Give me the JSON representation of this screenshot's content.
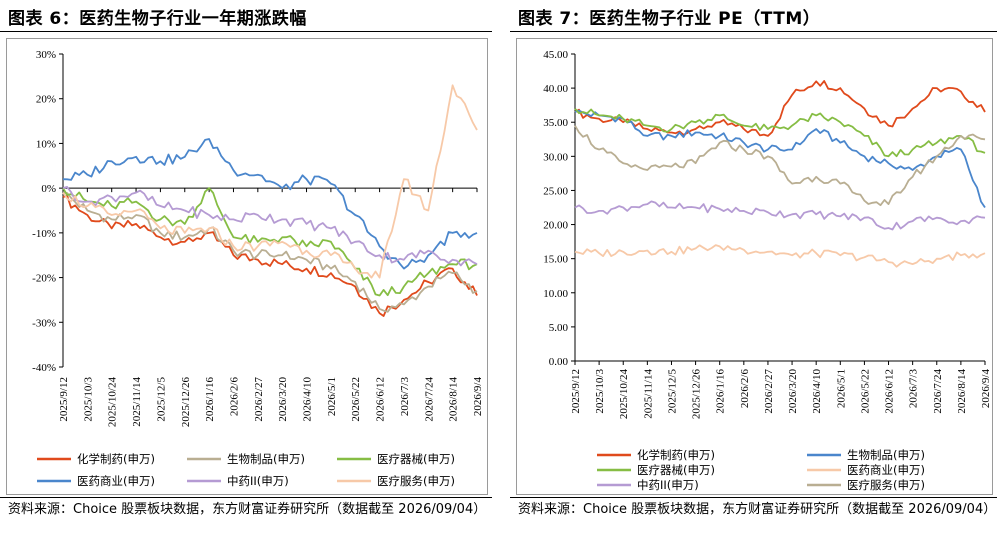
{
  "source_text": "资料来源：Choice 股票板块数据，东方财富证券研究所（数据截至 2026/09/04）",
  "left": {
    "title": "图表 6：医药生物子行业一年期涨跌幅"
  },
  "right": {
    "title": "图表 7：医药生物子行业 PE（TTM）"
  },
  "chart_data": [
    {
      "type": "line",
      "categories": [
        "2025/9/12",
        "2025/10/3",
        "2025/10/24",
        "2025/11/14",
        "2025/12/5",
        "2025/12/26",
        "2026/1/16",
        "2026/2/6",
        "2026/2/27",
        "2026/3/20",
        "2026/4/10",
        "2026/5/1",
        "2026/5/22",
        "2026/6/12",
        "2026/7/3",
        "2026/7/24",
        "2026/8/14",
        "2026/9/4"
      ],
      "ylim": [
        -40,
        30
      ],
      "yticks": [
        -40,
        -30,
        -20,
        -10,
        0,
        10,
        20,
        30
      ],
      "ytick_labels": [
        "-40%",
        "-30%",
        "-20%",
        "-10%",
        "0%",
        "10%",
        "20%",
        "30%"
      ],
      "legend_position": "bottom",
      "series": [
        {
          "name": "化学制药(申万)",
          "color": "#e04a1c",
          "values": [
            -2,
            -6,
            -9,
            -8,
            -11,
            -12,
            -10,
            -15,
            -16,
            -17,
            -18,
            -19,
            -22,
            -28,
            -25,
            -21,
            -18,
            -24
          ]
        },
        {
          "name": "生物制品(申万)",
          "color": "#b9ae92",
          "values": [
            -1,
            -5,
            -7,
            -6,
            -10,
            -11,
            -9,
            -14,
            -15,
            -15,
            -16,
            -18,
            -21,
            -27,
            -26,
            -22,
            -19,
            -23
          ]
        },
        {
          "name": "医疗器械(申万)",
          "color": "#86bd44",
          "values": [
            0,
            -3,
            -4,
            -3,
            -7,
            -8,
            0,
            -11,
            -12,
            -11,
            -13,
            -12,
            -18,
            -24,
            -22,
            -19,
            -17,
            -17
          ]
        },
        {
          "name": "医药商业(申万)",
          "color": "#4a86cc",
          "values": [
            2,
            3,
            6,
            7,
            6,
            7,
            11,
            4,
            3,
            0,
            2,
            1,
            -6,
            -13,
            -18,
            -15,
            -10,
            -10
          ]
        },
        {
          "name": "中药II(申万)",
          "color": "#b59bd3",
          "values": [
            0,
            -3,
            -2,
            -1,
            -4,
            -5,
            -6,
            -7,
            -6,
            -7,
            -8,
            -9,
            -12,
            -15,
            -16,
            -14,
            -16,
            -17
          ]
        },
        {
          "name": "医疗服务(申万)",
          "color": "#f7c9a8",
          "values": [
            -1,
            -4,
            -6,
            -5,
            -9,
            -10,
            -9,
            -13,
            -13,
            -12,
            -14,
            -15,
            -18,
            -20,
            2,
            -5,
            23,
            13
          ]
        }
      ]
    },
    {
      "type": "line",
      "categories": [
        "2025/9/12",
        "2025/10/3",
        "2025/10/24",
        "2025/11/14",
        "2025/12/5",
        "2025/12/26",
        "2026/1/16",
        "2026/2/6",
        "2026/2/27",
        "2026/3/20",
        "2026/4/10",
        "2026/5/1",
        "2026/5/22",
        "2026/6/12",
        "2026/7/3",
        "2026/7/24",
        "2026/8/14",
        "2026/9/4"
      ],
      "ylim": [
        0,
        45
      ],
      "yticks": [
        0,
        5,
        10,
        15,
        20,
        25,
        30,
        35,
        40,
        45
      ],
      "ytick_labels": [
        "0.00",
        "5.00",
        "10.00",
        "15.00",
        "20.00",
        "25.00",
        "30.00",
        "35.00",
        "40.00",
        "45.00"
      ],
      "legend_position": "bottom",
      "series": [
        {
          "name": "化学制药(申万)",
          "color": "#e04a1c",
          "values": [
            36.5,
            35.5,
            35,
            34,
            33.5,
            34,
            35,
            34,
            33,
            39,
            41,
            40,
            37,
            34.5,
            37,
            40,
            39.5,
            36.5
          ]
        },
        {
          "name": "生物制品(申万)",
          "color": "#4a86cc",
          "values": [
            36.5,
            36,
            35.5,
            33,
            33,
            33.5,
            33,
            32,
            31,
            31,
            34,
            32,
            30,
            29,
            28,
            30,
            31,
            22.5
          ]
        },
        {
          "name": "医疗器械(申万)",
          "color": "#86bd44",
          "values": [
            37,
            36,
            35.5,
            34.5,
            34,
            35,
            36,
            34.5,
            34,
            34.5,
            36,
            35,
            33,
            30,
            31,
            32,
            33,
            30.5
          ]
        },
        {
          "name": "医药商业(申万)",
          "color": "#f7c9a8",
          "values": [
            16,
            15.8,
            16,
            16.2,
            16,
            16.5,
            16.8,
            16.3,
            16,
            15.5,
            15.8,
            15.5,
            15.2,
            14.5,
            14.2,
            15,
            15.5,
            15.8
          ]
        },
        {
          "name": "中药II(申万)",
          "color": "#b59bd3",
          "values": [
            22.5,
            22,
            22.5,
            23,
            22.5,
            22.5,
            22.3,
            22,
            21.8,
            21.5,
            21.5,
            21.2,
            21,
            19.5,
            20.5,
            21,
            20.5,
            21
          ]
        },
        {
          "name": "医疗服务(申万)",
          "color": "#b9ae92",
          "values": [
            34.5,
            31,
            29,
            28,
            28.5,
            29,
            32,
            31,
            30,
            26,
            27,
            26,
            23.5,
            23,
            27,
            30,
            33,
            32.5
          ]
        }
      ]
    }
  ]
}
